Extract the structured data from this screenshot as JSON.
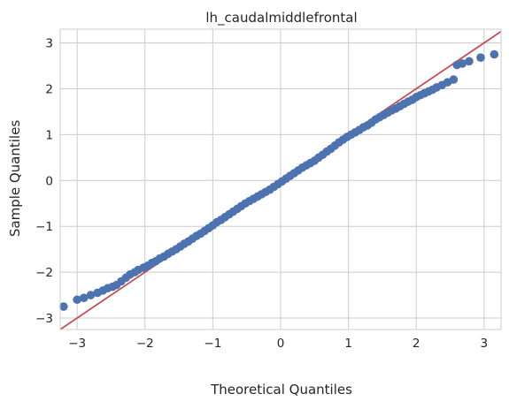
{
  "chart_data": {
    "type": "scatter",
    "title": "lh_caudalmiddlefrontal",
    "xlabel": "Theoretical Quantiles",
    "ylabel": "Sample Quantiles",
    "xlim": [
      -3.25,
      3.25
    ],
    "ylim": [
      -3.25,
      3.3
    ],
    "x_ticks": [
      "−3",
      "−2",
      "−1",
      "0",
      "1",
      "2",
      "3"
    ],
    "y_ticks": [
      "−3",
      "−2",
      "−1",
      "0",
      "1",
      "2",
      "3"
    ],
    "grid": true,
    "colors": {
      "points": "#4c72b0",
      "reference_line": "#c44e52",
      "grid": "#cccccc",
      "frame": "#cccccc"
    },
    "reference_line": {
      "slope": 1.0,
      "intercept": 0.0
    },
    "points": [
      [
        -3.2,
        -2.75
      ],
      [
        -3.0,
        -2.6
      ],
      [
        -2.9,
        -2.56
      ],
      [
        -2.8,
        -2.5
      ],
      [
        -2.7,
        -2.45
      ],
      [
        -2.62,
        -2.4
      ],
      [
        -2.55,
        -2.35
      ],
      [
        -2.48,
        -2.32
      ],
      [
        -2.42,
        -2.28
      ],
      [
        -2.35,
        -2.2
      ],
      [
        -2.28,
        -2.12
      ],
      [
        -2.22,
        -2.05
      ],
      [
        -2.15,
        -2.0
      ],
      [
        -2.1,
        -1.95
      ],
      [
        -2.02,
        -1.9
      ],
      [
        -1.96,
        -1.86
      ],
      [
        -1.9,
        -1.8
      ],
      [
        -1.84,
        -1.76
      ],
      [
        -1.78,
        -1.7
      ],
      [
        -1.72,
        -1.66
      ],
      [
        -1.66,
        -1.6
      ],
      [
        -1.6,
        -1.55
      ],
      [
        -1.54,
        -1.5
      ],
      [
        -1.48,
        -1.44
      ],
      [
        -1.42,
        -1.38
      ],
      [
        -1.36,
        -1.33
      ],
      [
        -1.3,
        -1.27
      ],
      [
        -1.24,
        -1.21
      ],
      [
        -1.18,
        -1.16
      ],
      [
        -1.12,
        -1.1
      ],
      [
        -1.06,
        -1.04
      ],
      [
        -1.0,
        -0.98
      ],
      [
        -0.94,
        -0.91
      ],
      [
        -0.88,
        -0.86
      ],
      [
        -0.82,
        -0.8
      ],
      [
        -0.76,
        -0.74
      ],
      [
        -0.7,
        -0.68
      ],
      [
        -0.64,
        -0.62
      ],
      [
        -0.58,
        -0.56
      ],
      [
        -0.52,
        -0.5
      ],
      [
        -0.46,
        -0.45
      ],
      [
        -0.4,
        -0.4
      ],
      [
        -0.34,
        -0.35
      ],
      [
        -0.28,
        -0.3
      ],
      [
        -0.22,
        -0.25
      ],
      [
        -0.16,
        -0.2
      ],
      [
        -0.1,
        -0.14
      ],
      [
        -0.04,
        -0.08
      ],
      [
        0.02,
        -0.02
      ],
      [
        0.08,
        0.04
      ],
      [
        0.14,
        0.1
      ],
      [
        0.2,
        0.16
      ],
      [
        0.26,
        0.22
      ],
      [
        0.32,
        0.28
      ],
      [
        0.38,
        0.33
      ],
      [
        0.44,
        0.38
      ],
      [
        0.5,
        0.43
      ],
      [
        0.56,
        0.5
      ],
      [
        0.62,
        0.56
      ],
      [
        0.68,
        0.63
      ],
      [
        0.74,
        0.69
      ],
      [
        0.8,
        0.76
      ],
      [
        0.86,
        0.83
      ],
      [
        0.92,
        0.89
      ],
      [
        0.98,
        0.95
      ],
      [
        1.04,
        1.0
      ],
      [
        1.1,
        1.05
      ],
      [
        1.16,
        1.1
      ],
      [
        1.22,
        1.16
      ],
      [
        1.28,
        1.2
      ],
      [
        1.34,
        1.26
      ],
      [
        1.4,
        1.33
      ],
      [
        1.46,
        1.38
      ],
      [
        1.52,
        1.43
      ],
      [
        1.58,
        1.48
      ],
      [
        1.64,
        1.53
      ],
      [
        1.7,
        1.57
      ],
      [
        1.76,
        1.62
      ],
      [
        1.82,
        1.67
      ],
      [
        1.88,
        1.72
      ],
      [
        1.94,
        1.76
      ],
      [
        2.0,
        1.82
      ],
      [
        2.06,
        1.86
      ],
      [
        2.12,
        1.9
      ],
      [
        2.18,
        1.94
      ],
      [
        2.24,
        1.98
      ],
      [
        2.3,
        2.03
      ],
      [
        2.38,
        2.08
      ],
      [
        2.46,
        2.14
      ],
      [
        2.55,
        2.2
      ],
      [
        2.6,
        2.52
      ],
      [
        2.68,
        2.55
      ],
      [
        2.78,
        2.6
      ],
      [
        2.95,
        2.68
      ],
      [
        3.15,
        2.75
      ]
    ]
  }
}
